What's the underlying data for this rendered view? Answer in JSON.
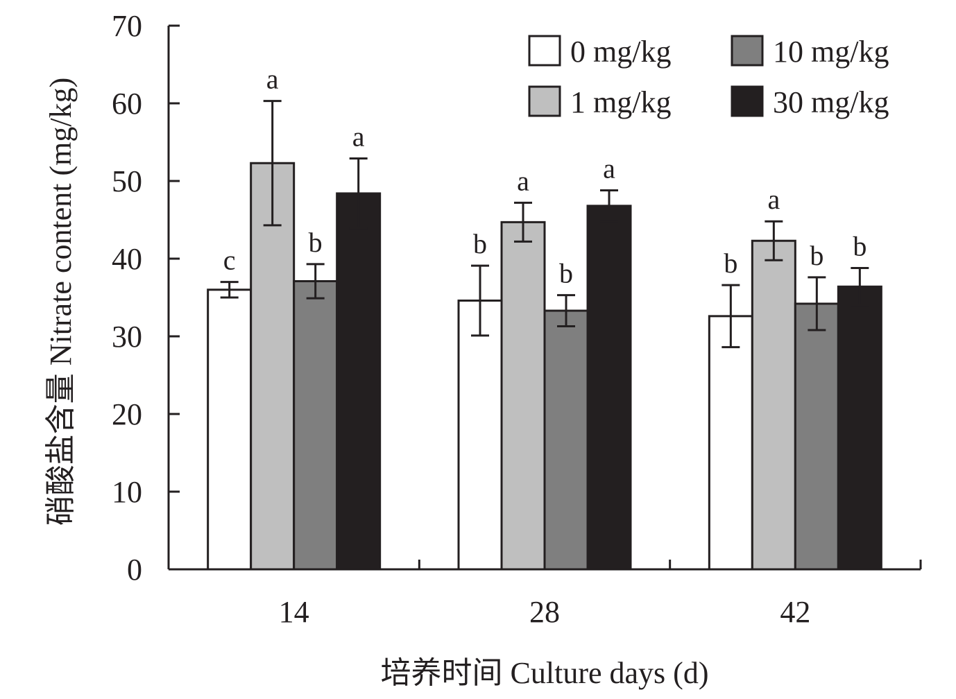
{
  "chart_data": {
    "type": "bar",
    "xlabel": "培养时间 Culture days (d)",
    "ylabel": "硝酸盐含量 Nitrate content (mg/kg)",
    "ylim": [
      0,
      70
    ],
    "yticks": [
      "0",
      "10",
      "20",
      "30",
      "40",
      "50",
      "60",
      "70"
    ],
    "categories": [
      "14",
      "28",
      "42"
    ],
    "legend_position": "top-right",
    "grid": false,
    "series": [
      {
        "name": "0 mg/kg",
        "color": "#ffffff",
        "values": [
          36.0,
          34.6,
          32.6
        ],
        "errors": [
          1.0,
          4.5,
          4.0
        ],
        "labels": [
          "c",
          "b",
          "b"
        ]
      },
      {
        "name": "1 mg/kg",
        "color": "#bfbfbf",
        "values": [
          52.3,
          44.7,
          42.3
        ],
        "errors": [
          8.0,
          2.5,
          2.5
        ],
        "labels": [
          "a",
          "a",
          "a"
        ]
      },
      {
        "name": "10 mg/kg",
        "color": "#7f7f7f",
        "values": [
          37.1,
          33.3,
          34.2
        ],
        "errors": [
          2.2,
          2.0,
          3.4
        ],
        "labels": [
          "b",
          "b",
          "b"
        ]
      },
      {
        "name": "30 mg/kg",
        "color": "#231f20",
        "values": [
          48.4,
          46.8,
          36.4
        ],
        "errors": [
          4.5,
          2.0,
          2.4
        ],
        "labels": [
          "a",
          "a",
          "b"
        ]
      }
    ]
  }
}
